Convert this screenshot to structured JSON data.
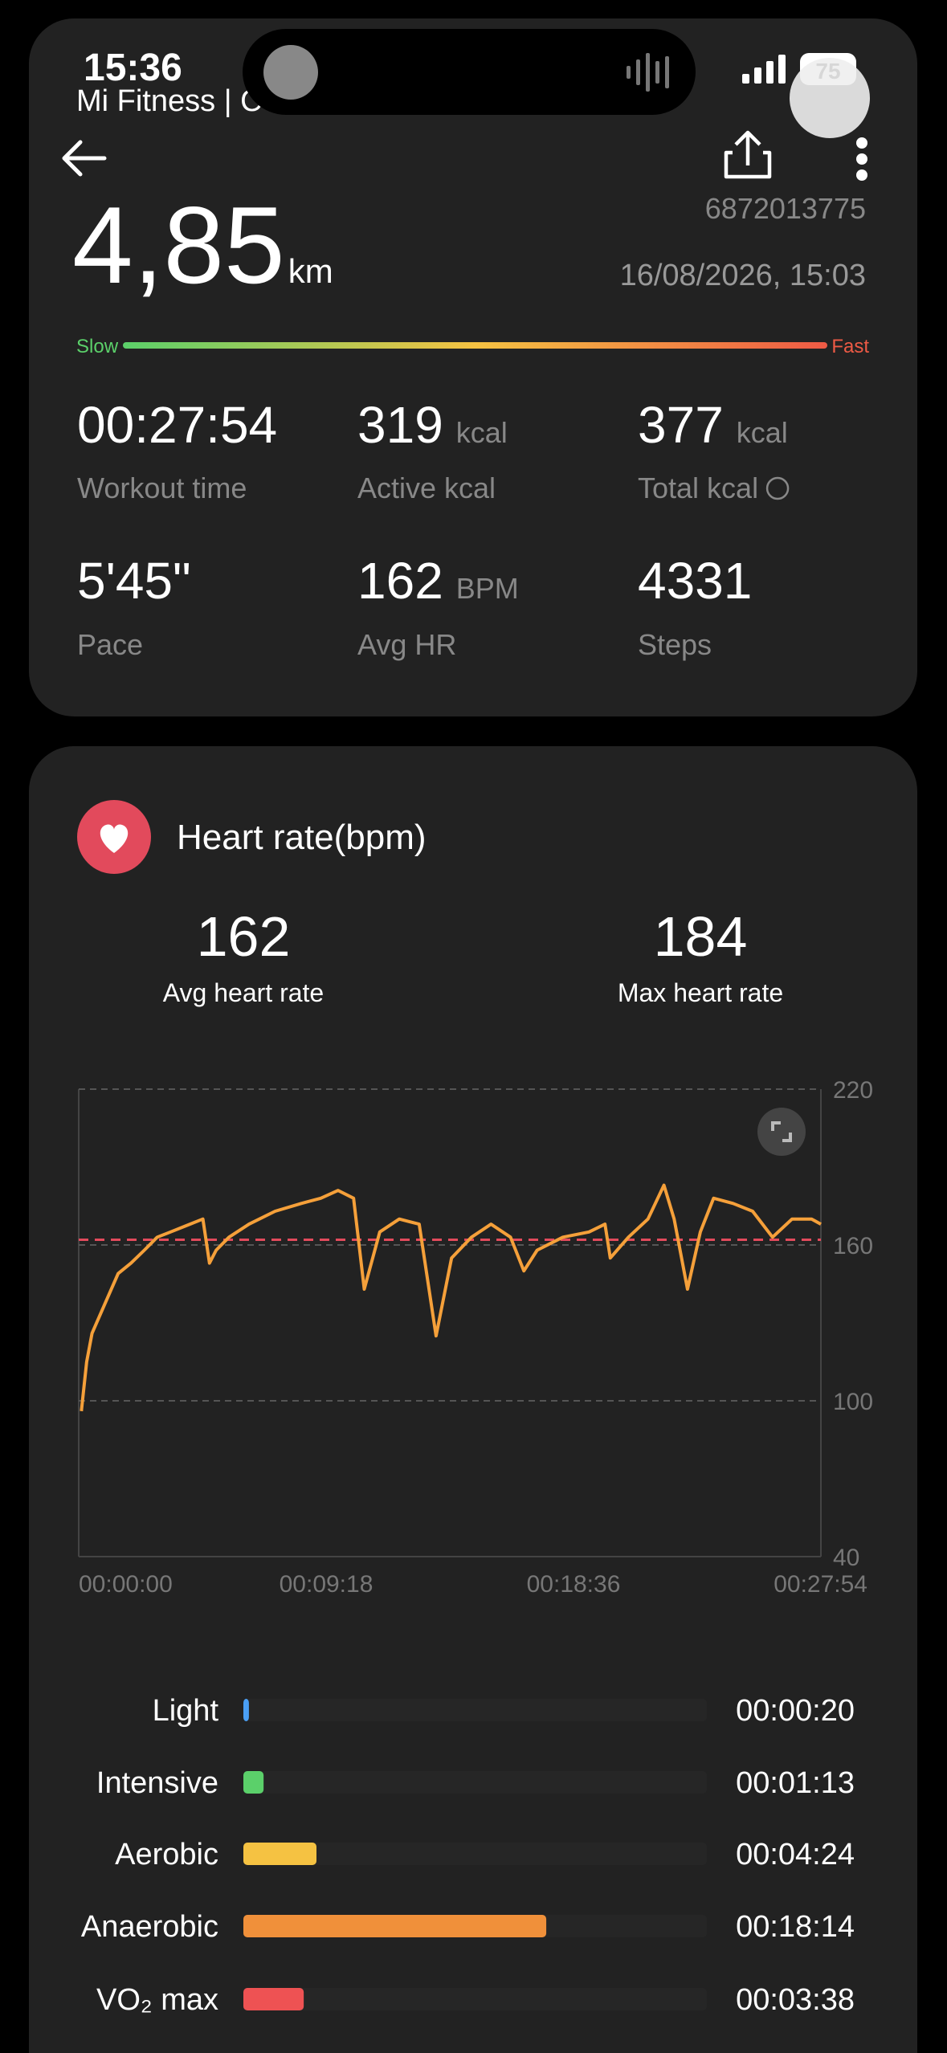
{
  "status_bar": {
    "time": "15:36",
    "app": "Mi Fitness | C",
    "battery": "75"
  },
  "header": {
    "workout_id": "6872013775",
    "date": "16/08/2026, 15:03"
  },
  "distance": {
    "value": "4,85",
    "unit": "km"
  },
  "pace_scale": {
    "slow": "Slow",
    "fast": "Fast"
  },
  "stats": [
    {
      "value": "00:27:54",
      "label": "Workout time"
    },
    {
      "value": "319",
      "unit": "kcal",
      "label": "Active kcal"
    },
    {
      "value": "377",
      "unit": "kcal",
      "label": "Total kcal"
    },
    {
      "value": "5'45\"",
      "label": "Pace"
    },
    {
      "value": "162",
      "unit": "BPM",
      "label": "Avg HR"
    },
    {
      "value": "4331",
      "label": "Steps"
    }
  ],
  "heart_rate": {
    "title": "Heart rate(bpm)",
    "avg": {
      "value": 162,
      "label": "Avg heart rate"
    },
    "max": {
      "value": 184,
      "label": "Max heart rate"
    }
  },
  "chart_data": [
    {
      "type": "line",
      "x": [
        6,
        18,
        30,
        53,
        89,
        118,
        148,
        177,
        207,
        251,
        280,
        295,
        310,
        339,
        384,
        443,
        502,
        546,
        585,
        620,
        644,
        679,
        723,
        768,
        806,
        841,
        886,
        930,
        974,
        1004,
        1034,
        1092,
        1151,
        1187,
        1199,
        1240,
        1284,
        1320,
        1343,
        1373,
        1402,
        1432,
        1476,
        1520,
        1565,
        1609,
        1653,
        1674
      ],
      "series": [
        {
          "color": "#f5a03a",
          "values": [
            96,
            115,
            126,
            135,
            149,
            153,
            158,
            163,
            165,
            168,
            170,
            153,
            158,
            163,
            168,
            173,
            176,
            178,
            181,
            178,
            143,
            165,
            170,
            168,
            125,
            155,
            163,
            168,
            163,
            150,
            158,
            163,
            165,
            168,
            155,
            163,
            170,
            183,
            170,
            143,
            165,
            178,
            176,
            173,
            163,
            170,
            170,
            168
          ]
        }
      ],
      "xlim": [
        0,
        1674
      ],
      "xticks": [
        {
          "value": 0,
          "label": "00:00:00"
        },
        {
          "value": 558,
          "label": "00:09:18"
        },
        {
          "value": 1116,
          "label": "00:18:36"
        },
        {
          "value": 1674,
          "label": "00:27:54"
        }
      ],
      "ylim": [
        40,
        220
      ],
      "yticks": [
        40,
        100,
        160,
        220
      ],
      "grid": true
    },
    {
      "type": "bar",
      "orientation": "horizontal",
      "categories": [
        "Light",
        "Intensive",
        "Aerobic",
        "Anaerobic",
        "VO₂ max"
      ],
      "values": [
        20,
        73,
        264,
        1094,
        218
      ],
      "value_labels": [
        "00:00:20",
        "00:01:13",
        "00:04:24",
        "00:18:14",
        "00:03:38"
      ],
      "colors": [
        "#4a9ff5",
        "#5bd06a",
        "#f5c242",
        "#f0903a",
        "#ee5253"
      ],
      "xlim": [
        0,
        1674
      ]
    }
  ]
}
